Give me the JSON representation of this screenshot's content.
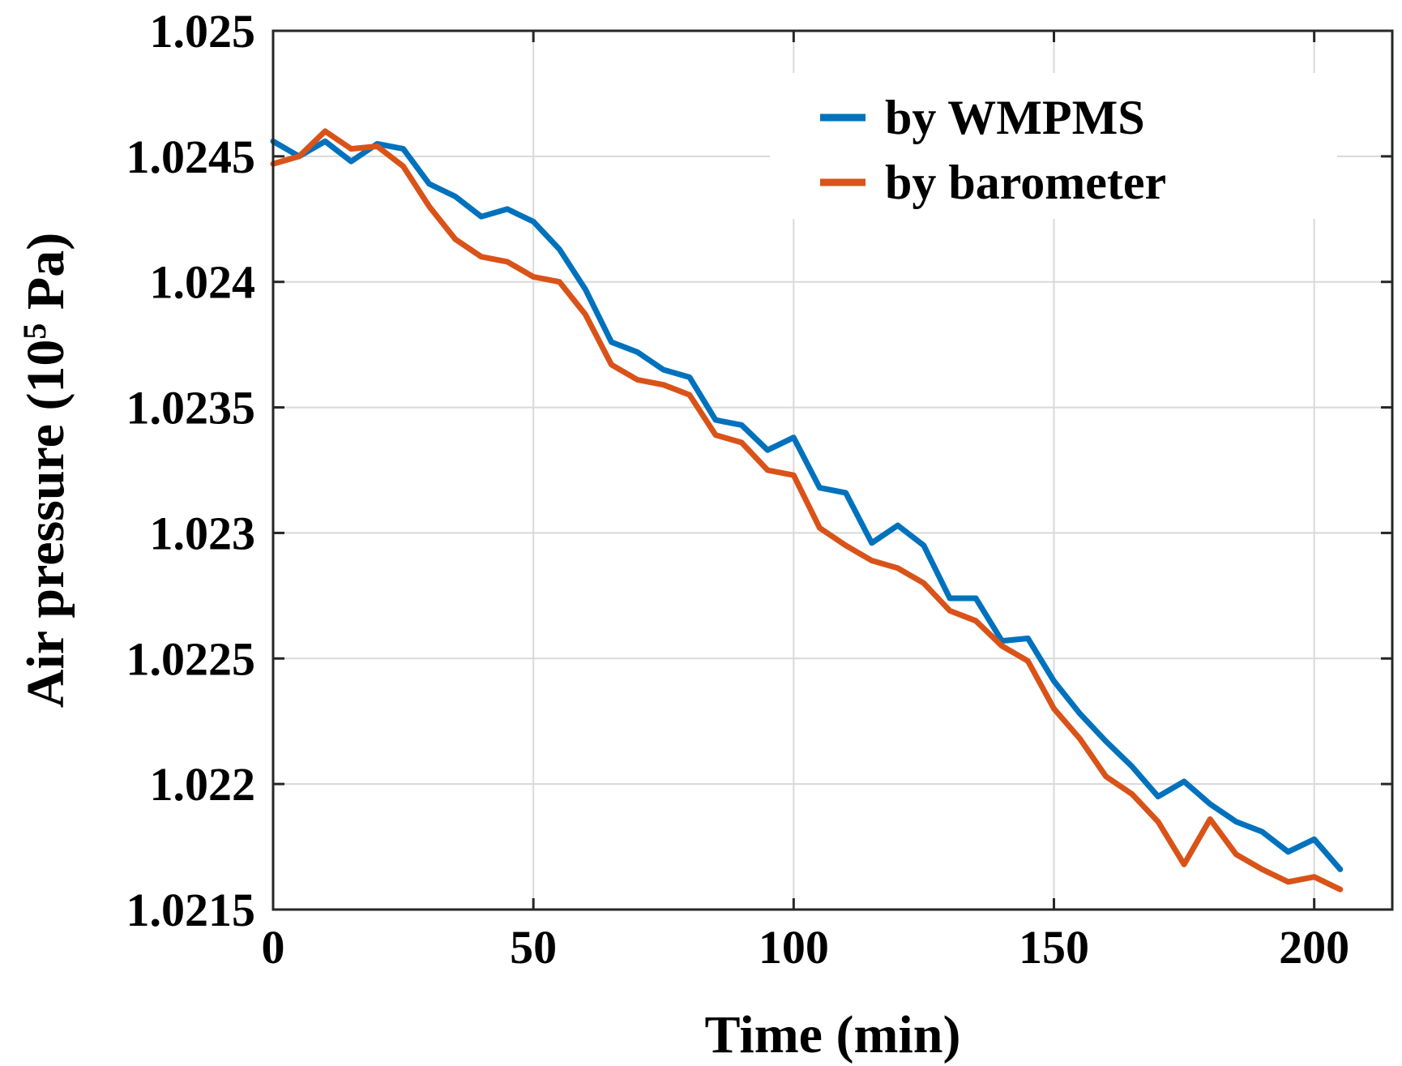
{
  "chart_data": {
    "type": "line",
    "title": "",
    "xlabel": "Time (min)",
    "ylabel": {
      "main": "Air pressure (10",
      "sup": "5",
      "unit": " Pa)"
    },
    "xlim": [
      0,
      215
    ],
    "ylim": [
      1.0215,
      1.025
    ],
    "xticks": [
      0,
      50,
      100,
      150,
      200
    ],
    "xtick_labels": [
      "0",
      "50",
      "100",
      "150",
      "200"
    ],
    "yticks": [
      1.0215,
      1.022,
      1.0225,
      1.023,
      1.0235,
      1.024,
      1.0245,
      1.025
    ],
    "ytick_labels": [
      "1.0215",
      "1.022",
      "1.0225",
      "1.023",
      "1.0235",
      "1.024",
      "1.0245",
      "1.025"
    ],
    "grid": true,
    "legend_position": "top-right",
    "x": [
      0,
      5,
      10,
      15,
      20,
      25,
      30,
      35,
      40,
      45,
      50,
      55,
      60,
      65,
      70,
      75,
      80,
      85,
      90,
      95,
      100,
      105,
      110,
      115,
      120,
      125,
      130,
      135,
      140,
      145,
      150,
      155,
      160,
      165,
      170,
      175,
      180,
      185,
      190,
      195,
      200,
      205
    ],
    "series": [
      {
        "name": "by WMPMS",
        "color": "#0072BD",
        "values": [
          1.02456,
          1.0245,
          1.02456,
          1.02448,
          1.02455,
          1.02453,
          1.02439,
          1.02434,
          1.02426,
          1.02429,
          1.02424,
          1.02413,
          1.02397,
          1.02376,
          1.02372,
          1.02365,
          1.02362,
          1.02345,
          1.02343,
          1.02333,
          1.02338,
          1.02318,
          1.02316,
          1.02296,
          1.02303,
          1.02295,
          1.02274,
          1.02274,
          1.02257,
          1.02258,
          1.02241,
          1.02228,
          1.02217,
          1.02207,
          1.02195,
          1.02201,
          1.02192,
          1.02185,
          1.02181,
          1.02173,
          1.02178,
          1.02166
        ]
      },
      {
        "name": "by barometer",
        "color": "#D95319",
        "values": [
          1.02447,
          1.0245,
          1.0246,
          1.02453,
          1.02454,
          1.02446,
          1.0243,
          1.02417,
          1.0241,
          1.02408,
          1.02402,
          1.024,
          1.02387,
          1.02367,
          1.02361,
          1.02359,
          1.02355,
          1.02339,
          1.02336,
          1.02325,
          1.02323,
          1.02302,
          1.02295,
          1.02289,
          1.02286,
          1.0228,
          1.02269,
          1.02265,
          1.02255,
          1.02249,
          1.0223,
          1.02218,
          1.02203,
          1.02196,
          1.02185,
          1.02168,
          1.02186,
          1.02172,
          1.02166,
          1.02161,
          1.02163,
          1.02158
        ]
      }
    ]
  }
}
